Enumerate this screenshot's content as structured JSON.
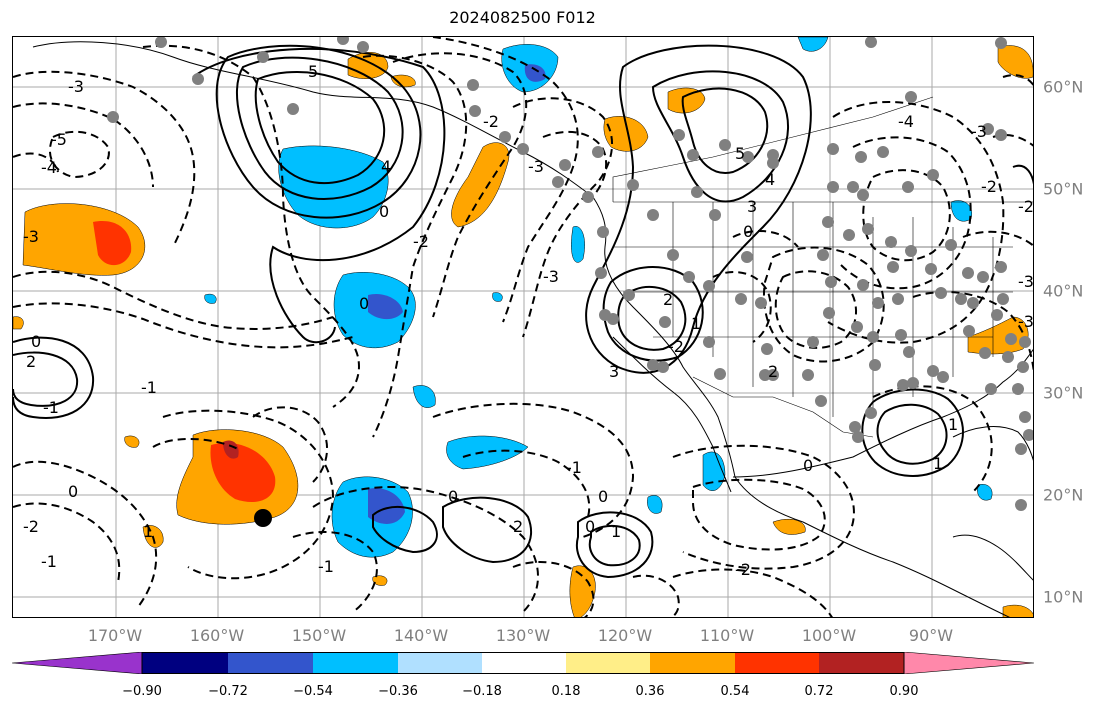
{
  "title": "2024082500 F012",
  "lon_labels": [
    "170°W",
    "160°W",
    "150°W",
    "140°W",
    "130°W",
    "120°W",
    "110°W",
    "100°W",
    "90°W"
  ],
  "lat_labels": [
    "60°N",
    "50°N",
    "40°N",
    "30°N",
    "20°N",
    "10°N"
  ],
  "colorbar": {
    "colors": [
      "#9933cc",
      "#000080",
      "#3355cc",
      "#00bfff",
      "#b0e0ff",
      "#ffffff",
      "#ffee88",
      "#ffa500",
      "#ff3300",
      "#b22222",
      "#ff88aa"
    ],
    "tick_labels": [
      "−0.90",
      "−0.72",
      "−0.54",
      "−0.36",
      "−0.18",
      "0.18",
      "0.36",
      "0.54",
      "0.72",
      "0.90"
    ]
  },
  "contour_labels": [
    "-3",
    "-5",
    "-4",
    "-3",
    "5",
    "4",
    "0",
    "-2",
    "-2",
    "-3",
    "5",
    "4",
    "3",
    "0",
    "-2",
    "-3",
    "2",
    "1",
    "3",
    "0",
    "2",
    "-1",
    "-1",
    "0",
    "-2",
    "-1",
    "0",
    "1",
    "2",
    "0",
    "1",
    "0",
    "-1",
    "-1",
    "0",
    "0",
    "-2",
    "-4",
    "-3",
    "-2",
    "-2",
    "-3",
    "-3",
    "2",
    "1",
    "1"
  ],
  "colors": {
    "neg_contour": "#000000",
    "pos_contour": "#000000",
    "grid": "#aaaaaa",
    "stations": "#808080",
    "marker": "#000000"
  }
}
